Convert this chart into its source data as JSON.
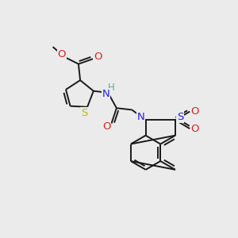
{
  "bg_color": "#ebebeb",
  "bond_color": "#1a1a1a",
  "bond_width": 1.4,
  "atom_colors": {
    "C": "#1a1a1a",
    "H": "#5aaaaa",
    "N": "#2222dd",
    "O": "#dd2222",
    "S_yellow": "#bbbb00",
    "S_blue": "#2222dd"
  }
}
